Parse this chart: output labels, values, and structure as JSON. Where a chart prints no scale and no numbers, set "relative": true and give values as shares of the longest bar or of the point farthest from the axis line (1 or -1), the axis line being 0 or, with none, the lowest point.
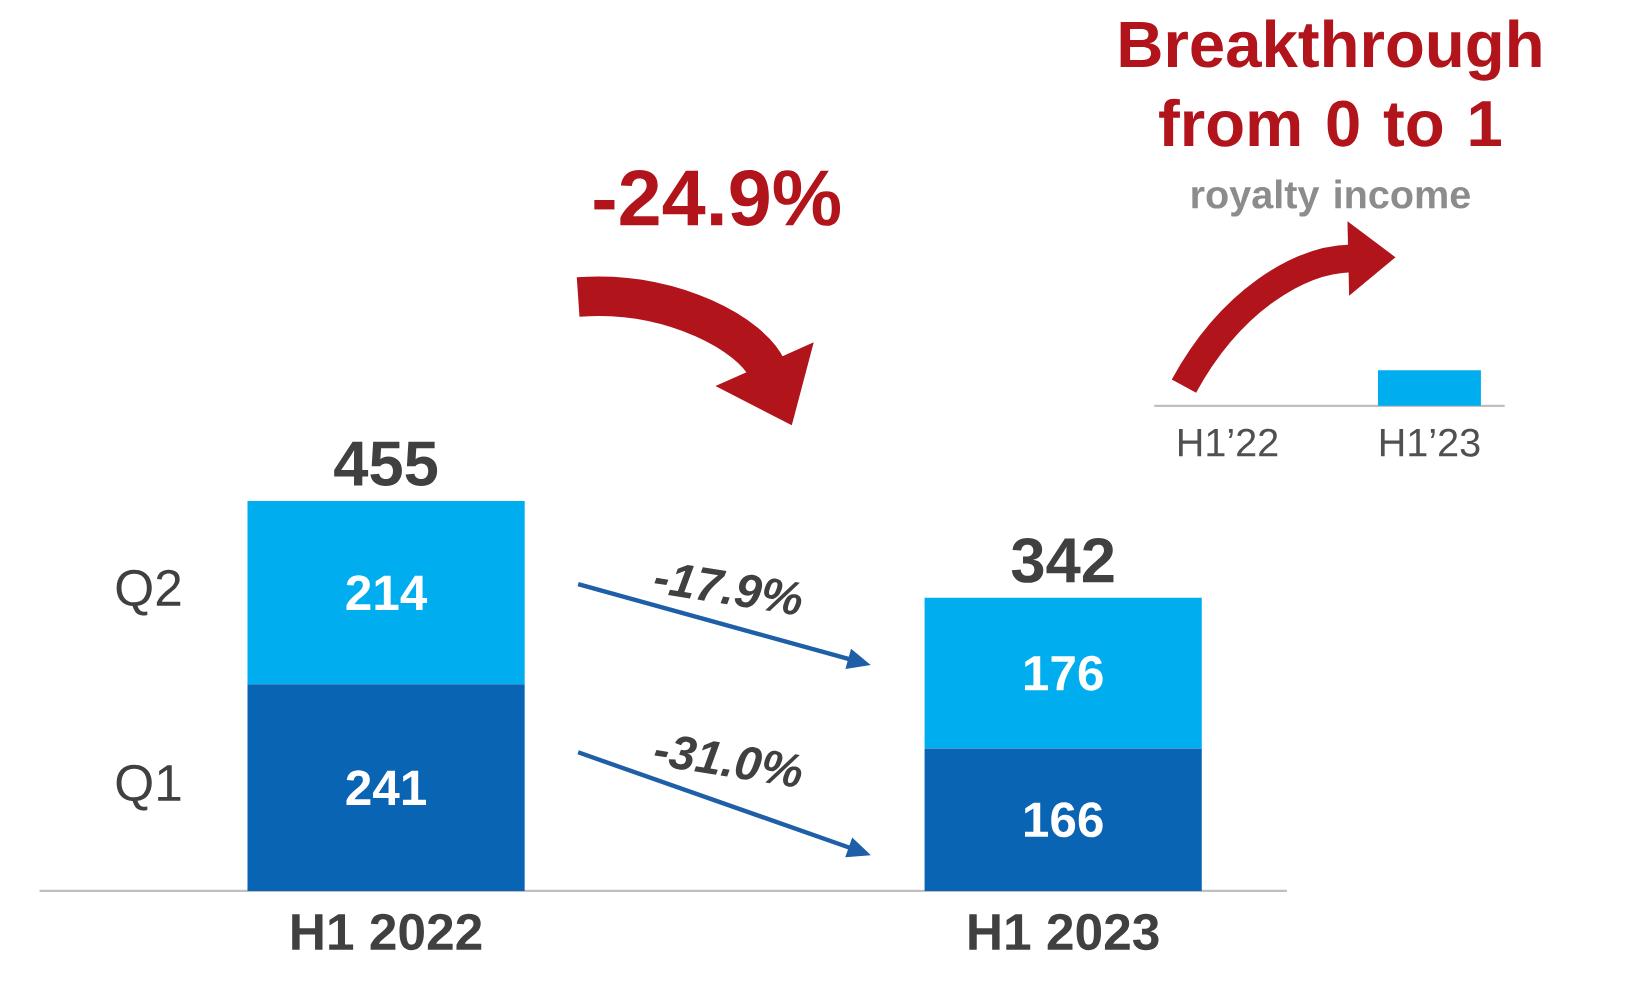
{
  "chart_data": [
    {
      "type": "bar",
      "stacked": true,
      "categories": [
        "H1 2022",
        "H1 2023"
      ],
      "series": [
        {
          "name": "Q1",
          "color": "#0a64b4",
          "values": [
            241,
            166
          ]
        },
        {
          "name": "Q2",
          "color": "#00aeef",
          "values": [
            214,
            176
          ]
        }
      ],
      "totals": [
        "455",
        "342"
      ],
      "data_labels": true,
      "tick_labels": "x",
      "annotations": [
        "-24.9%",
        "-17.9%",
        "-31.0%"
      ]
    },
    {
      "type": "bar",
      "relative": true,
      "title": "Breakthrough from 0 to 1",
      "subtitle": "royalty income",
      "categories": [
        "H1’22",
        "H1’23"
      ],
      "values": [
        0,
        1
      ],
      "color": "#00aeef"
    }
  ]
}
